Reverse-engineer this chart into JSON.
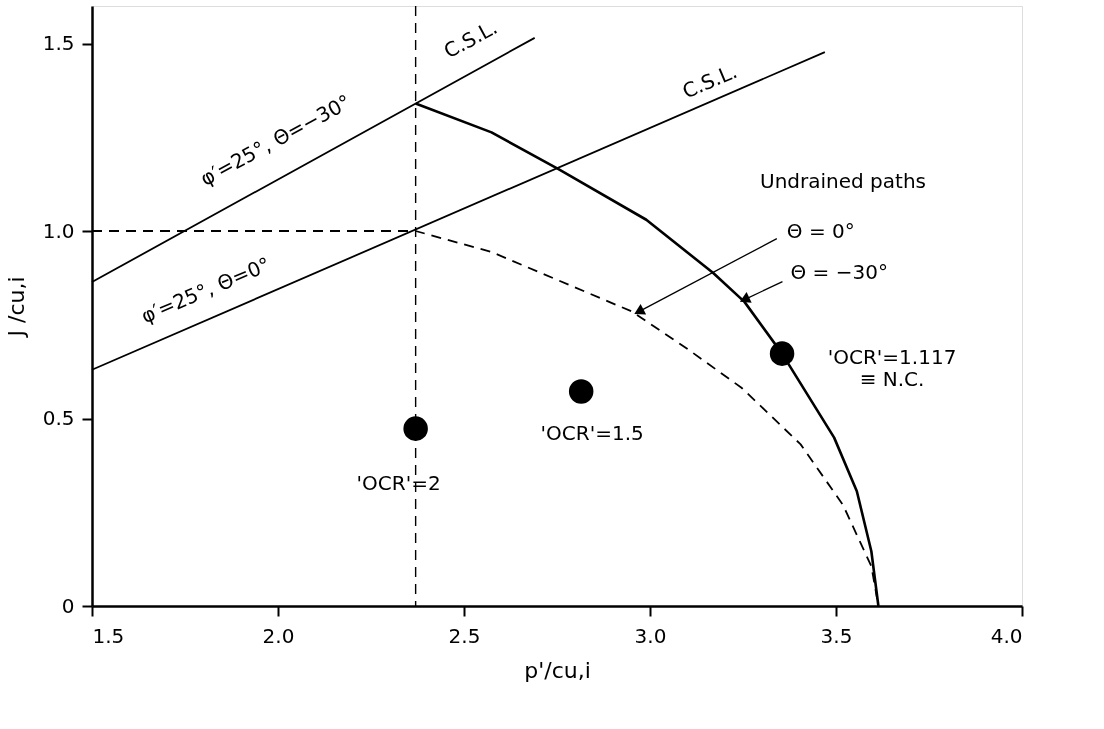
{
  "chart_data": {
    "type": "line",
    "xlabel": "p'/cu,i",
    "ylabel": "J /cu,i",
    "xlim": [
      1.5,
      4.0
    ],
    "ylim": [
      0,
      1.6
    ],
    "xticks": [
      1.5,
      {
        "value": 2,
        "label": "2.0"
      },
      2.5,
      {
        "value": 3,
        "label": "3.0"
      },
      3.5,
      {
        "value": 4,
        "label": "4.0"
      }
    ],
    "yticks": [
      {
        "value": 0,
        "label": "0"
      },
      0.5,
      {
        "value": 1,
        "label": "1.0"
      },
      1.5
    ],
    "grid": false,
    "series": [
      {
        "color": "#000000",
        "line_style": "solid",
        "x": [
          1.5,
          2.69
        ],
        "values": [
          0.864,
          1.515
        ]
      },
      {
        "color": "#000000",
        "line_style": "solid",
        "x": [
          1.5,
          3.47
        ],
        "values": [
          0.63,
          1.477
        ]
      },
      {
        "color": "#000000",
        "line_style": "solid",
        "x": [
          2.37,
          2.574,
          2.754,
          2.99,
          3.17,
          3.254,
          3.355,
          3.495,
          3.556,
          3.595,
          3.614
        ],
        "values": [
          1.34,
          1.263,
          1.165,
          1.03,
          0.888,
          0.811,
          0.673,
          0.449,
          0.306,
          0.146,
          0
        ]
      },
      {
        "color": "#000000",
        "line_style": "dashed",
        "x": [
          1.5,
          2.37,
          2.574,
          2.952,
          3.1,
          3.246,
          3.405,
          3.519,
          3.595,
          3.614
        ],
        "values": [
          1.0,
          1.0,
          0.944,
          0.785,
          0.686,
          0.582,
          0.431,
          0.269,
          0.106,
          0
        ]
      },
      {
        "type": "scatter",
        "color": "#000000",
        "marker": "circle",
        "x": [
          2.37,
          2.815,
          3.355
        ],
        "values": [
          0.473,
          0.572,
          0.673
        ]
      }
    ],
    "ref_lines": [
      {
        "axis": "x",
        "value": 2.37,
        "line_style": "dashed",
        "color": "#000000"
      }
    ],
    "annotations": [
      "C.S.L.",
      "C.S.L.",
      "φ′=25°, Θ=−30°",
      "φ′=25°, Θ=0°",
      "Undrained paths",
      {
        "text": "Θ = 0°",
        "x": 2.97,
        "y": 0.785
      },
      {
        "text": "Θ = −30°",
        "x": 3.254,
        "y": 0.817
      },
      {
        "text": "'OCR'=2",
        "x": 2.37,
        "y": 0.473
      },
      {
        "text": "'OCR'=1.5",
        "x": 2.815,
        "y": 0.572
      },
      {
        "text": "'OCR'=1.117\n≡ N.C.",
        "x": 3.355,
        "y": 0.673
      }
    ]
  }
}
